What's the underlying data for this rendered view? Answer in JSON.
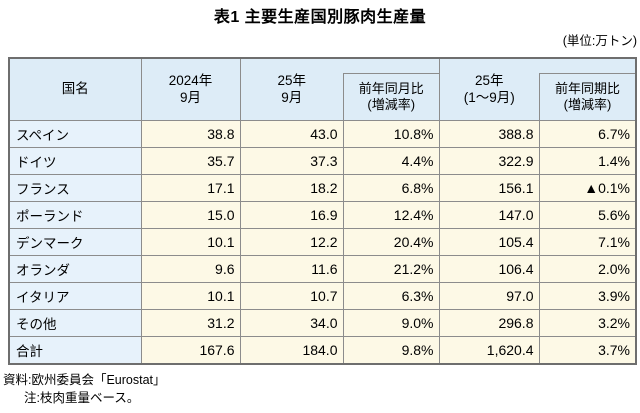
{
  "title": "表1 主要生産国別豚肉生産量",
  "unit_label": "(単位:万トン)",
  "table": {
    "header": {
      "country": "国名",
      "col_2024_sep": [
        "2024年",
        "9月"
      ],
      "col_2025_sep": [
        "25年",
        "9月"
      ],
      "col_mom": [
        "前年同月比",
        "(増減率)"
      ],
      "col_2025_jan_sep": [
        "25年",
        "(1〜9月)"
      ],
      "col_yoy": [
        "前年同期比",
        "(増減率)"
      ]
    },
    "rows": [
      {
        "name": "スペイン",
        "values": [
          "38.8",
          "43.0",
          "10.8%",
          "388.8",
          "6.7%"
        ]
      },
      {
        "name": "ドイツ",
        "values": [
          "35.7",
          "37.3",
          "4.4%",
          "322.9",
          "1.4%"
        ]
      },
      {
        "name": "フランス",
        "values": [
          "17.1",
          "18.2",
          "6.8%",
          "156.1",
          "▲0.1%"
        ]
      },
      {
        "name": "ポーランド",
        "values": [
          "15.0",
          "16.9",
          "12.4%",
          "147.0",
          "5.6%"
        ]
      },
      {
        "name": "デンマーク",
        "values": [
          "10.1",
          "12.2",
          "20.4%",
          "105.4",
          "7.1%"
        ]
      },
      {
        "name": "オランダ",
        "values": [
          "9.6",
          "11.6",
          "21.2%",
          "106.4",
          "2.0%"
        ]
      },
      {
        "name": "イタリア",
        "values": [
          "10.1",
          "10.7",
          "6.3%",
          "97.0",
          "3.9%"
        ]
      },
      {
        "name": "その他",
        "values": [
          "31.2",
          "34.0",
          "9.0%",
          "296.8",
          "3.2%"
        ]
      },
      {
        "name": "合計",
        "values": [
          "167.6",
          "184.0",
          "9.8%",
          "1,620.4",
          "3.7%"
        ]
      }
    ]
  },
  "notes": {
    "source": "資料:欧州委員会「Eurostat」",
    "note": "注:枝肉重量ベース。"
  },
  "colors": {
    "header_bg": "#ddecf7",
    "country_col_bg": "#e7f2fb",
    "value_cell_bg": "#fdf9e6",
    "inner_border": "#8c8c8c",
    "outer_border": "#6e6e6e",
    "negative_marker": "#000000"
  }
}
